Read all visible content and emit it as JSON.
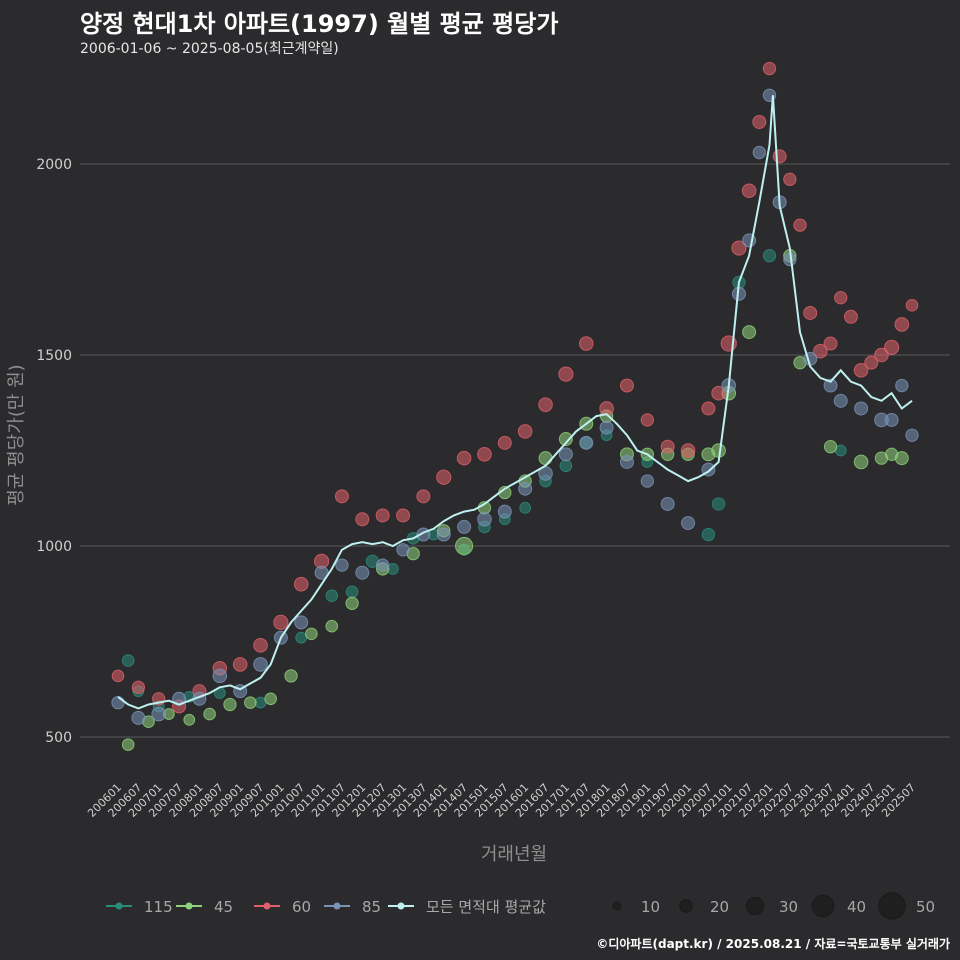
{
  "header": {
    "title": "양정 현대1차 아파트(1997) 월별 평균 평당가",
    "subtitle": "2006-01-06 ~ 2025-08-05(최근계약일)"
  },
  "footer": "©디아파트(dapt.kr) / 2025.08.21 / 자료=국토교통부 실거래가",
  "chart_data": {
    "type": "scatter",
    "xlabel": "거래년월",
    "ylabel": "평균 평당가(만 원)",
    "yticks": [
      500,
      1000,
      1500,
      2000
    ],
    "ylim": [
      360,
      2270
    ],
    "x_start": "2006-01",
    "x_end": "2025-08",
    "xticks": [
      "200601",
      "200607",
      "200701",
      "200707",
      "200801",
      "200807",
      "200901",
      "200907",
      "201001",
      "201007",
      "201101",
      "201107",
      "201201",
      "201207",
      "201301",
      "201307",
      "201401",
      "201407",
      "201501",
      "201507",
      "201601",
      "201607",
      "201701",
      "201707",
      "201801",
      "201807",
      "201901",
      "201907",
      "202001",
      "202007",
      "202101",
      "202107",
      "202201",
      "202207",
      "202301",
      "202307",
      "202401",
      "202407",
      "202501",
      "202507"
    ],
    "grid": "horizontal",
    "colors": {
      "115": "#2a8c7a",
      "45": "#8fd17a",
      "60": "#e0606a",
      "85": "#7a93b8",
      "average": "#bff0f0"
    },
    "legend_placement": "bottom",
    "legend_series": [
      "115",
      "45",
      "60",
      "85",
      "모든 면적대 평균값"
    ],
    "legend_sizes": [
      10,
      20,
      30,
      40,
      50
    ],
    "average_line": [
      [
        "2006-01",
        605
      ],
      [
        "2006-04",
        585
      ],
      [
        "2006-07",
        575
      ],
      [
        "2006-10",
        585
      ],
      [
        "2007-01",
        590
      ],
      [
        "2007-04",
        595
      ],
      [
        "2007-07",
        585
      ],
      [
        "2007-10",
        595
      ],
      [
        "2008-01",
        605
      ],
      [
        "2008-04",
        615
      ],
      [
        "2008-07",
        630
      ],
      [
        "2008-10",
        635
      ],
      [
        "2009-01",
        625
      ],
      [
        "2009-04",
        640
      ],
      [
        "2009-07",
        655
      ],
      [
        "2009-10",
        690
      ],
      [
        "2010-01",
        760
      ],
      [
        "2010-04",
        800
      ],
      [
        "2010-07",
        830
      ],
      [
        "2010-10",
        860
      ],
      [
        "2011-01",
        900
      ],
      [
        "2011-04",
        940
      ],
      [
        "2011-07",
        990
      ],
      [
        "2011-10",
        1005
      ],
      [
        "2012-01",
        1010
      ],
      [
        "2012-04",
        1005
      ],
      [
        "2012-07",
        1010
      ],
      [
        "2012-10",
        1000
      ],
      [
        "2013-01",
        1015
      ],
      [
        "2013-04",
        1020
      ],
      [
        "2013-07",
        1035
      ],
      [
        "2013-10",
        1045
      ],
      [
        "2014-01",
        1065
      ],
      [
        "2014-04",
        1080
      ],
      [
        "2014-07",
        1090
      ],
      [
        "2014-10",
        1095
      ],
      [
        "2015-01",
        1110
      ],
      [
        "2015-04",
        1130
      ],
      [
        "2015-07",
        1150
      ],
      [
        "2015-10",
        1165
      ],
      [
        "2016-01",
        1180
      ],
      [
        "2016-04",
        1195
      ],
      [
        "2016-07",
        1210
      ],
      [
        "2016-10",
        1240
      ],
      [
        "2017-01",
        1270
      ],
      [
        "2017-04",
        1300
      ],
      [
        "2017-07",
        1320
      ],
      [
        "2017-10",
        1340
      ],
      [
        "2018-01",
        1345
      ],
      [
        "2018-04",
        1320
      ],
      [
        "2018-07",
        1290
      ],
      [
        "2018-10",
        1250
      ],
      [
        "2019-01",
        1240
      ],
      [
        "2019-04",
        1220
      ],
      [
        "2019-07",
        1200
      ],
      [
        "2019-10",
        1185
      ],
      [
        "2020-01",
        1170
      ],
      [
        "2020-04",
        1180
      ],
      [
        "2020-07",
        1195
      ],
      [
        "2020-10",
        1220
      ],
      [
        "2021-01",
        1420
      ],
      [
        "2021-04",
        1690
      ],
      [
        "2021-07",
        1760
      ],
      [
        "2021-10",
        1900
      ],
      [
        "2022-01",
        2050
      ],
      [
        "2022-02",
        2180
      ],
      [
        "2022-04",
        1890
      ],
      [
        "2022-07",
        1780
      ],
      [
        "2022-10",
        1560
      ],
      [
        "2023-01",
        1470
      ],
      [
        "2023-04",
        1440
      ],
      [
        "2023-07",
        1430
      ],
      [
        "2023-10",
        1460
      ],
      [
        "2024-01",
        1430
      ],
      [
        "2024-04",
        1420
      ],
      [
        "2024-07",
        1390
      ],
      [
        "2024-10",
        1380
      ],
      [
        "2025-01",
        1400
      ],
      [
        "2025-04",
        1360
      ],
      [
        "2025-07",
        1380
      ]
    ],
    "series": [
      {
        "name": "115",
        "points": [
          [
            "2006-04",
            700,
            10
          ],
          [
            "2006-07",
            620,
            8
          ],
          [
            "2007-01",
            580,
            8
          ],
          [
            "2007-10",
            605,
            8
          ],
          [
            "2008-07",
            615,
            8
          ],
          [
            "2009-07",
            590,
            8
          ],
          [
            "2010-07",
            760,
            8
          ],
          [
            "2011-04",
            870,
            10
          ],
          [
            "2011-10",
            880,
            10
          ],
          [
            "2012-04",
            960,
            12
          ],
          [
            "2012-10",
            940,
            8
          ],
          [
            "2013-04",
            1020,
            10
          ],
          [
            "2013-10",
            1030,
            8
          ],
          [
            "2014-07",
            990,
            8
          ],
          [
            "2015-01",
            1050,
            10
          ],
          [
            "2015-07",
            1070,
            8
          ],
          [
            "2016-01",
            1100,
            8
          ],
          [
            "2016-07",
            1170,
            10
          ],
          [
            "2017-01",
            1210,
            10
          ],
          [
            "2017-07",
            1270,
            10
          ],
          [
            "2018-01",
            1290,
            8
          ],
          [
            "2019-01",
            1220,
            8
          ],
          [
            "2020-07",
            1030,
            12
          ],
          [
            "2020-10",
            1110,
            12
          ],
          [
            "2021-04",
            1690,
            12
          ],
          [
            "2022-01",
            1760,
            12
          ],
          [
            "2023-10",
            1250,
            8
          ]
        ]
      },
      {
        "name": "45",
        "points": [
          [
            "2006-04",
            480,
            10
          ],
          [
            "2006-10",
            540,
            10
          ],
          [
            "2007-04",
            560,
            8
          ],
          [
            "2007-10",
            545,
            8
          ],
          [
            "2008-04",
            560,
            10
          ],
          [
            "2008-10",
            585,
            12
          ],
          [
            "2009-04",
            590,
            10
          ],
          [
            "2009-10",
            600,
            10
          ],
          [
            "2010-04",
            660,
            12
          ],
          [
            "2010-10",
            770,
            10
          ],
          [
            "2011-04",
            790,
            10
          ],
          [
            "2011-10",
            850,
            12
          ],
          [
            "2012-07",
            940,
            12
          ],
          [
            "2013-04",
            980,
            12
          ],
          [
            "2014-01",
            1040,
            12
          ],
          [
            "2014-07",
            1000,
            30
          ],
          [
            "2015-01",
            1100,
            12
          ],
          [
            "2015-07",
            1140,
            12
          ],
          [
            "2016-01",
            1170,
            12
          ],
          [
            "2016-07",
            1230,
            14
          ],
          [
            "2017-01",
            1280,
            14
          ],
          [
            "2017-07",
            1320,
            14
          ],
          [
            "2018-01",
            1340,
            12
          ],
          [
            "2018-07",
            1240,
            14
          ],
          [
            "2019-01",
            1240,
            12
          ],
          [
            "2019-07",
            1240,
            12
          ],
          [
            "2020-01",
            1240,
            12
          ],
          [
            "2020-07",
            1240,
            14
          ],
          [
            "2020-10",
            1250,
            16
          ],
          [
            "2021-01",
            1400,
            16
          ],
          [
            "2021-07",
            1560,
            14
          ],
          [
            "2022-07",
            1760,
            12
          ],
          [
            "2022-10",
            1480,
            12
          ],
          [
            "2023-07",
            1260,
            12
          ],
          [
            "2024-04",
            1220,
            16
          ],
          [
            "2024-10",
            1230,
            12
          ],
          [
            "2025-01",
            1240,
            12
          ],
          [
            "2025-04",
            1230,
            14
          ]
        ]
      },
      {
        "name": "60",
        "points": [
          [
            "2006-01",
            660,
            10
          ],
          [
            "2006-07",
            630,
            12
          ],
          [
            "2007-01",
            600,
            12
          ],
          [
            "2007-07",
            580,
            14
          ],
          [
            "2008-01",
            620,
            14
          ],
          [
            "2008-07",
            680,
            16
          ],
          [
            "2009-01",
            690,
            16
          ],
          [
            "2009-07",
            740,
            16
          ],
          [
            "2010-01",
            800,
            18
          ],
          [
            "2010-07",
            900,
            16
          ],
          [
            "2011-01",
            960,
            18
          ],
          [
            "2011-07",
            1130,
            14
          ],
          [
            "2012-01",
            1070,
            14
          ],
          [
            "2012-07",
            1080,
            14
          ],
          [
            "2013-01",
            1080,
            14
          ],
          [
            "2013-07",
            1130,
            14
          ],
          [
            "2014-01",
            1180,
            18
          ],
          [
            "2014-07",
            1230,
            16
          ],
          [
            "2015-01",
            1240,
            16
          ],
          [
            "2015-07",
            1270,
            14
          ],
          [
            "2016-01",
            1300,
            16
          ],
          [
            "2016-07",
            1370,
            16
          ],
          [
            "2017-01",
            1450,
            18
          ],
          [
            "2017-07",
            1530,
            16
          ],
          [
            "2018-01",
            1360,
            16
          ],
          [
            "2018-07",
            1420,
            14
          ],
          [
            "2019-01",
            1330,
            12
          ],
          [
            "2019-07",
            1260,
            14
          ],
          [
            "2020-01",
            1250,
            16
          ],
          [
            "2020-07",
            1360,
            14
          ],
          [
            "2020-10",
            1400,
            16
          ],
          [
            "2021-01",
            1530,
            22
          ],
          [
            "2021-04",
            1780,
            18
          ],
          [
            "2021-07",
            1930,
            16
          ],
          [
            "2021-10",
            2110,
            14
          ],
          [
            "2022-01",
            2250,
            12
          ],
          [
            "2022-04",
            2020,
            14
          ],
          [
            "2022-07",
            1960,
            12
          ],
          [
            "2022-10",
            1840,
            12
          ],
          [
            "2023-01",
            1610,
            14
          ],
          [
            "2023-04",
            1510,
            16
          ],
          [
            "2023-07",
            1530,
            14
          ],
          [
            "2023-10",
            1650,
            12
          ],
          [
            "2024-01",
            1600,
            14
          ],
          [
            "2024-04",
            1460,
            16
          ],
          [
            "2024-07",
            1480,
            14
          ],
          [
            "2024-10",
            1500,
            16
          ],
          [
            "2025-01",
            1520,
            18
          ],
          [
            "2025-04",
            1580,
            16
          ],
          [
            "2025-07",
            1630,
            10
          ]
        ]
      },
      {
        "name": "85",
        "points": [
          [
            "2006-01",
            590,
            12
          ],
          [
            "2006-07",
            550,
            14
          ],
          [
            "2007-01",
            560,
            16
          ],
          [
            "2007-07",
            600,
            14
          ],
          [
            "2008-01",
            600,
            14
          ],
          [
            "2008-07",
            660,
            16
          ],
          [
            "2009-01",
            620,
            14
          ],
          [
            "2009-07",
            690,
            16
          ],
          [
            "2010-01",
            760,
            14
          ],
          [
            "2010-07",
            800,
            14
          ],
          [
            "2011-01",
            930,
            14
          ],
          [
            "2011-07",
            950,
            12
          ],
          [
            "2012-01",
            930,
            14
          ],
          [
            "2012-07",
            950,
            12
          ],
          [
            "2013-01",
            990,
            12
          ],
          [
            "2013-07",
            1030,
            14
          ],
          [
            "2014-01",
            1030,
            14
          ],
          [
            "2014-07",
            1050,
            14
          ],
          [
            "2015-01",
            1070,
            16
          ],
          [
            "2015-07",
            1090,
            14
          ],
          [
            "2016-01",
            1150,
            14
          ],
          [
            "2016-07",
            1190,
            16
          ],
          [
            "2017-01",
            1240,
            14
          ],
          [
            "2017-07",
            1270,
            14
          ],
          [
            "2018-01",
            1310,
            14
          ],
          [
            "2018-07",
            1220,
            14
          ],
          [
            "2019-01",
            1170,
            12
          ],
          [
            "2019-07",
            1110,
            14
          ],
          [
            "2020-01",
            1060,
            14
          ],
          [
            "2020-07",
            1200,
            14
          ],
          [
            "2021-01",
            1420,
            16
          ],
          [
            "2021-04",
            1660,
            14
          ],
          [
            "2021-07",
            1800,
            14
          ],
          [
            "2021-10",
            2030,
            12
          ],
          [
            "2022-01",
            2180,
            12
          ],
          [
            "2022-04",
            1900,
            14
          ],
          [
            "2022-07",
            1750,
            12
          ],
          [
            "2023-01",
            1490,
            14
          ],
          [
            "2023-07",
            1420,
            14
          ],
          [
            "2023-10",
            1380,
            14
          ],
          [
            "2024-04",
            1360,
            14
          ],
          [
            "2024-10",
            1330,
            16
          ],
          [
            "2025-01",
            1330,
            14
          ],
          [
            "2025-04",
            1420,
            12
          ],
          [
            "2025-07",
            1290,
            12
          ]
        ]
      }
    ]
  }
}
